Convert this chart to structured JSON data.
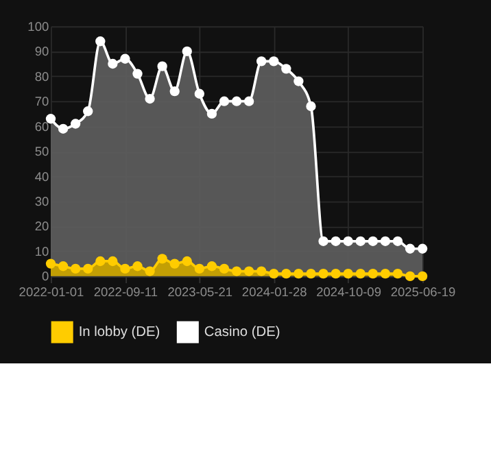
{
  "chart_data": {
    "type": "area",
    "categories": [
      "2022-01-01",
      null,
      null,
      null,
      null,
      null,
      "2022-09-11",
      null,
      null,
      null,
      null,
      null,
      "2023-05-21",
      null,
      null,
      null,
      null,
      null,
      "2024-01-28",
      null,
      null,
      null,
      null,
      null,
      "2024-10-09",
      null,
      null,
      null,
      null,
      null,
      "2025-06-19"
    ],
    "series": [
      {
        "name": "In lobby (DE)",
        "color": "#ffcc00",
        "values": [
          5,
          4,
          3,
          3,
          6,
          6,
          3,
          4,
          2,
          7,
          5,
          6,
          3,
          4,
          3,
          2,
          2,
          2,
          1,
          1,
          1,
          1,
          1,
          1,
          1,
          1,
          1,
          1,
          1,
          0,
          0
        ]
      },
      {
        "name": "Casino (DE)",
        "color": "#ffffff",
        "values": [
          63,
          59,
          61,
          66,
          94,
          85,
          87,
          81,
          71,
          84,
          74,
          90,
          73,
          65,
          70,
          70,
          70,
          86,
          86,
          83,
          78,
          68,
          14,
          14,
          14,
          14,
          14,
          14,
          14,
          11,
          11
        ]
      }
    ],
    "ylim": [
      0,
      100
    ],
    "yticks": [
      0,
      10,
      20,
      30,
      40,
      50,
      60,
      70,
      80,
      90,
      100
    ],
    "grid": true,
    "legend": "bottom",
    "marker": "circle"
  }
}
